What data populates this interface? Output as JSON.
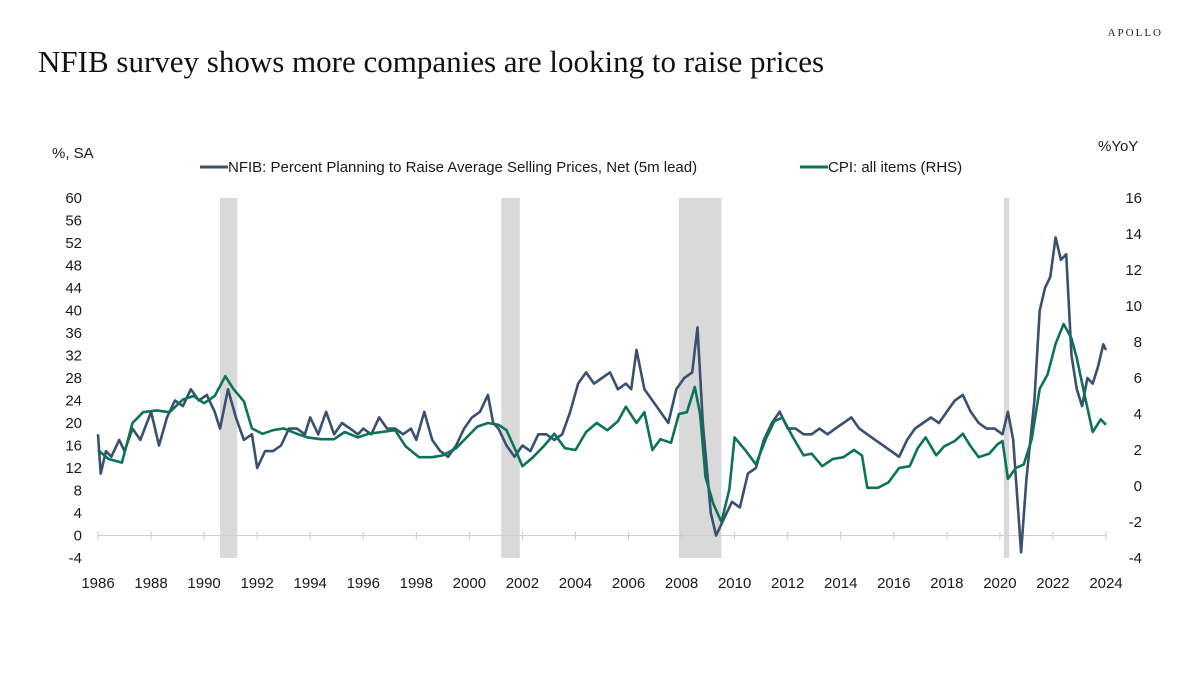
{
  "header": {
    "brand": "APOLLO",
    "title": "NFIB survey shows more companies are looking to raise prices"
  },
  "chart_data": {
    "type": "line",
    "title": "NFIB survey shows more companies are looking to raise prices",
    "left_axis": {
      "label": "%, SA",
      "range": [
        -4,
        60
      ],
      "ticks": [
        "60",
        "56",
        "52",
        "48",
        "44",
        "40",
        "36",
        "32",
        "28",
        "24",
        "20",
        "16",
        "12",
        "8",
        "4",
        "0",
        "-4"
      ]
    },
    "right_axis": {
      "label": "%YoY",
      "range": [
        -4,
        16
      ],
      "ticks": [
        "16",
        "14",
        "12",
        "10",
        "8",
        "6",
        "4",
        "2",
        "0",
        "-2",
        "-4"
      ]
    },
    "x_axis": {
      "range": [
        1986,
        2024
      ],
      "ticks": [
        "1986",
        "1988",
        "1990",
        "1992",
        "1994",
        "1996",
        "1998",
        "2000",
        "2002",
        "2004",
        "2006",
        "2008",
        "2010",
        "2012",
        "2014",
        "2016",
        "2018",
        "2020",
        "2022",
        "2024"
      ]
    },
    "recessions": [
      [
        1990.6,
        1991.25
      ],
      [
        2001.2,
        2001.9
      ],
      [
        2007.9,
        2009.5
      ],
      [
        2020.15,
        2020.35
      ]
    ],
    "legend_position": "top",
    "series": [
      {
        "name": "NFIB: Percent Planning to Raise Average Selling Prices, Net (5m lead)",
        "axis": "left",
        "color": "#3a5070",
        "points": [
          [
            1986.0,
            18
          ],
          [
            1986.1,
            11
          ],
          [
            1986.3,
            15
          ],
          [
            1986.5,
            14
          ],
          [
            1986.8,
            17
          ],
          [
            1987.0,
            15
          ],
          [
            1987.3,
            19
          ],
          [
            1987.6,
            17
          ],
          [
            1988.0,
            22
          ],
          [
            1988.3,
            16
          ],
          [
            1988.6,
            21
          ],
          [
            1988.9,
            24
          ],
          [
            1989.2,
            23
          ],
          [
            1989.5,
            26
          ],
          [
            1989.8,
            24
          ],
          [
            1990.1,
            25
          ],
          [
            1990.4,
            22
          ],
          [
            1990.6,
            19
          ],
          [
            1990.9,
            26
          ],
          [
            1991.2,
            21
          ],
          [
            1991.5,
            17
          ],
          [
            1991.8,
            18
          ],
          [
            1992.0,
            12
          ],
          [
            1992.3,
            15
          ],
          [
            1992.6,
            15
          ],
          [
            1992.9,
            16
          ],
          [
            1993.2,
            19
          ],
          [
            1993.5,
            19
          ],
          [
            1993.8,
            18
          ],
          [
            1994.0,
            21
          ],
          [
            1994.3,
            18
          ],
          [
            1994.6,
            22
          ],
          [
            1994.9,
            18
          ],
          [
            1995.2,
            20
          ],
          [
            1995.5,
            19
          ],
          [
            1995.8,
            18
          ],
          [
            1996.0,
            19
          ],
          [
            1996.3,
            18
          ],
          [
            1996.6,
            21
          ],
          [
            1996.9,
            19
          ],
          [
            1997.2,
            19
          ],
          [
            1997.5,
            18
          ],
          [
            1997.8,
            19
          ],
          [
            1998.0,
            17
          ],
          [
            1998.3,
            22
          ],
          [
            1998.6,
            17
          ],
          [
            1998.9,
            15
          ],
          [
            1999.2,
            14
          ],
          [
            1999.5,
            16
          ],
          [
            1999.8,
            19
          ],
          [
            2000.1,
            21
          ],
          [
            2000.4,
            22
          ],
          [
            2000.7,
            25
          ],
          [
            2000.9,
            20
          ],
          [
            2001.1,
            19
          ],
          [
            2001.4,
            16
          ],
          [
            2001.7,
            14
          ],
          [
            2002.0,
            16
          ],
          [
            2002.3,
            15
          ],
          [
            2002.6,
            18
          ],
          [
            2002.9,
            18
          ],
          [
            2003.2,
            17
          ],
          [
            2003.5,
            18
          ],
          [
            2003.8,
            22
          ],
          [
            2004.1,
            27
          ],
          [
            2004.4,
            29
          ],
          [
            2004.7,
            27
          ],
          [
            2005.0,
            28
          ],
          [
            2005.3,
            29
          ],
          [
            2005.6,
            26
          ],
          [
            2005.9,
            27
          ],
          [
            2006.1,
            26
          ],
          [
            2006.3,
            33
          ],
          [
            2006.6,
            26
          ],
          [
            2006.9,
            24
          ],
          [
            2007.2,
            22
          ],
          [
            2007.5,
            20
          ],
          [
            2007.8,
            26
          ],
          [
            2008.1,
            28
          ],
          [
            2008.4,
            29
          ],
          [
            2008.6,
            37
          ],
          [
            2008.8,
            20
          ],
          [
            2009.1,
            4
          ],
          [
            2009.3,
            0
          ],
          [
            2009.6,
            3
          ],
          [
            2009.9,
            6
          ],
          [
            2010.2,
            5
          ],
          [
            2010.5,
            11
          ],
          [
            2010.8,
            12
          ],
          [
            2011.1,
            17
          ],
          [
            2011.4,
            20
          ],
          [
            2011.7,
            22
          ],
          [
            2012.0,
            19
          ],
          [
            2012.3,
            19
          ],
          [
            2012.6,
            18
          ],
          [
            2012.9,
            18
          ],
          [
            2013.2,
            19
          ],
          [
            2013.5,
            18
          ],
          [
            2013.8,
            19
          ],
          [
            2014.1,
            20
          ],
          [
            2014.4,
            21
          ],
          [
            2014.7,
            19
          ],
          [
            2015.0,
            18
          ],
          [
            2015.3,
            17
          ],
          [
            2015.6,
            16
          ],
          [
            2015.9,
            15
          ],
          [
            2016.2,
            14
          ],
          [
            2016.5,
            17
          ],
          [
            2016.8,
            19
          ],
          [
            2017.1,
            20
          ],
          [
            2017.4,
            21
          ],
          [
            2017.7,
            20
          ],
          [
            2018.0,
            22
          ],
          [
            2018.3,
            24
          ],
          [
            2018.6,
            25
          ],
          [
            2018.9,
            22
          ],
          [
            2019.2,
            20
          ],
          [
            2019.5,
            19
          ],
          [
            2019.8,
            19
          ],
          [
            2020.1,
            18
          ],
          [
            2020.3,
            22
          ],
          [
            2020.5,
            17
          ],
          [
            2020.8,
            -3
          ],
          [
            2021.0,
            10
          ],
          [
            2021.3,
            24
          ],
          [
            2021.5,
            40
          ],
          [
            2021.7,
            44
          ],
          [
            2021.9,
            46
          ],
          [
            2022.1,
            53
          ],
          [
            2022.3,
            49
          ],
          [
            2022.5,
            50
          ],
          [
            2022.7,
            32
          ],
          [
            2022.9,
            26
          ],
          [
            2023.1,
            23
          ],
          [
            2023.3,
            28
          ],
          [
            2023.5,
            27
          ],
          [
            2023.7,
            30
          ],
          [
            2023.9,
            34
          ],
          [
            2024.0,
            33
          ]
        ]
      },
      {
        "name": "CPI: all items (RHS)",
        "axis": "right",
        "color": "#0b7357",
        "points": [
          [
            1986.0,
            2.0
          ],
          [
            1986.4,
            1.5
          ],
          [
            1986.9,
            1.3
          ],
          [
            1987.3,
            3.5
          ],
          [
            1987.7,
            4.1
          ],
          [
            1988.2,
            4.2
          ],
          [
            1988.7,
            4.1
          ],
          [
            1989.2,
            4.8
          ],
          [
            1989.6,
            5.0
          ],
          [
            1990.0,
            4.6
          ],
          [
            1990.4,
            5.0
          ],
          [
            1990.8,
            6.1
          ],
          [
            1991.1,
            5.4
          ],
          [
            1991.5,
            4.7
          ],
          [
            1991.8,
            3.2
          ],
          [
            1992.2,
            2.9
          ],
          [
            1992.6,
            3.1
          ],
          [
            1993.0,
            3.2
          ],
          [
            1993.5,
            2.9
          ],
          [
            1993.9,
            2.7
          ],
          [
            1994.4,
            2.6
          ],
          [
            1994.9,
            2.6
          ],
          [
            1995.3,
            3.0
          ],
          [
            1995.8,
            2.7
          ],
          [
            1996.2,
            2.9
          ],
          [
            1996.7,
            3.0
          ],
          [
            1997.2,
            3.1
          ],
          [
            1997.6,
            2.2
          ],
          [
            1998.1,
            1.6
          ],
          [
            1998.6,
            1.6
          ],
          [
            1999.0,
            1.7
          ],
          [
            1999.5,
            2.1
          ],
          [
            1999.9,
            2.7
          ],
          [
            2000.3,
            3.3
          ],
          [
            2000.7,
            3.5
          ],
          [
            2001.1,
            3.4
          ],
          [
            2001.4,
            3.1
          ],
          [
            2001.8,
            1.8
          ],
          [
            2002.0,
            1.1
          ],
          [
            2002.4,
            1.6
          ],
          [
            2002.8,
            2.2
          ],
          [
            2003.2,
            2.9
          ],
          [
            2003.6,
            2.1
          ],
          [
            2004.0,
            2.0
          ],
          [
            2004.4,
            3.0
          ],
          [
            2004.8,
            3.5
          ],
          [
            2005.2,
            3.1
          ],
          [
            2005.6,
            3.6
          ],
          [
            2005.9,
            4.4
          ],
          [
            2006.3,
            3.5
          ],
          [
            2006.6,
            4.1
          ],
          [
            2006.9,
            2.0
          ],
          [
            2007.2,
            2.6
          ],
          [
            2007.6,
            2.4
          ],
          [
            2007.9,
            4.0
          ],
          [
            2008.2,
            4.1
          ],
          [
            2008.5,
            5.5
          ],
          [
            2008.7,
            4.0
          ],
          [
            2008.9,
            0.5
          ],
          [
            2009.2,
            -1.0
          ],
          [
            2009.5,
            -2.0
          ],
          [
            2009.8,
            -0.2
          ],
          [
            2010.0,
            2.7
          ],
          [
            2010.4,
            2.0
          ],
          [
            2010.8,
            1.2
          ],
          [
            2011.2,
            2.7
          ],
          [
            2011.5,
            3.6
          ],
          [
            2011.8,
            3.8
          ],
          [
            2012.2,
            2.7
          ],
          [
            2012.6,
            1.7
          ],
          [
            2012.9,
            1.8
          ],
          [
            2013.3,
            1.1
          ],
          [
            2013.7,
            1.5
          ],
          [
            2014.1,
            1.6
          ],
          [
            2014.5,
            2.0
          ],
          [
            2014.8,
            1.7
          ],
          [
            2015.0,
            -0.1
          ],
          [
            2015.4,
            -0.1
          ],
          [
            2015.8,
            0.2
          ],
          [
            2016.2,
            1.0
          ],
          [
            2016.6,
            1.1
          ],
          [
            2016.9,
            2.1
          ],
          [
            2017.2,
            2.7
          ],
          [
            2017.6,
            1.7
          ],
          [
            2017.9,
            2.2
          ],
          [
            2018.3,
            2.5
          ],
          [
            2018.6,
            2.9
          ],
          [
            2018.9,
            2.2
          ],
          [
            2019.2,
            1.6
          ],
          [
            2019.6,
            1.8
          ],
          [
            2019.9,
            2.3
          ],
          [
            2020.1,
            2.5
          ],
          [
            2020.3,
            0.4
          ],
          [
            2020.6,
            1.0
          ],
          [
            2020.9,
            1.2
          ],
          [
            2021.2,
            2.6
          ],
          [
            2021.5,
            5.4
          ],
          [
            2021.8,
            6.2
          ],
          [
            2022.1,
            7.9
          ],
          [
            2022.4,
            9.0
          ],
          [
            2022.7,
            8.2
          ],
          [
            2022.9,
            7.1
          ],
          [
            2023.2,
            5.0
          ],
          [
            2023.5,
            3.0
          ],
          [
            2023.8,
            3.7
          ],
          [
            2024.0,
            3.4
          ]
        ]
      }
    ]
  }
}
